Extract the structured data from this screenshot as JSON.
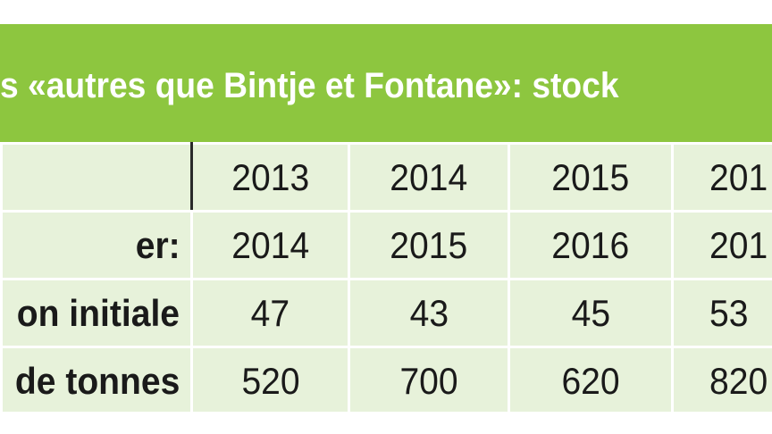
{
  "title": "s «autres que Bintje et Fontane»: stock",
  "table": {
    "rows": [
      {
        "label": "",
        "values": [
          "2013",
          "2014",
          "2015",
          "201"
        ]
      },
      {
        "label": "er:",
        "values": [
          "2014",
          "2015",
          "2016",
          "201"
        ]
      },
      {
        "label": "on initiale",
        "values": [
          "47",
          "43",
          "45",
          "53"
        ]
      },
      {
        "label": "de tonnes",
        "values": [
          "520",
          "700",
          "620",
          "820"
        ]
      }
    ]
  }
}
